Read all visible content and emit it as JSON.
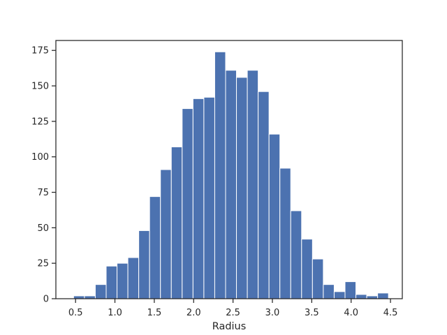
{
  "chart_data": {
    "type": "bar",
    "histogram": true,
    "bin_start": 0.475,
    "bin_width": 0.1379,
    "values": [
      2,
      2,
      10,
      23,
      25,
      29,
      48,
      72,
      91,
      107,
      134,
      141,
      142,
      174,
      161,
      156,
      161,
      146,
      116,
      92,
      62,
      42,
      28,
      10,
      5,
      12,
      3,
      2,
      4
    ],
    "xlabel": "Radius",
    "ylabel": "",
    "title": "",
    "xlim": [
      0.25,
      4.65
    ],
    "ylim": [
      0,
      182
    ],
    "xticks": [
      0.5,
      1.0,
      1.5,
      2.0,
      2.5,
      3.0,
      3.5,
      4.0,
      4.5
    ],
    "xtick_labels": [
      "0.5",
      "1.0",
      "1.5",
      "2.0",
      "2.5",
      "3.0",
      "3.5",
      "4.0",
      "4.5"
    ],
    "yticks": [
      0,
      25,
      50,
      75,
      100,
      125,
      150,
      175
    ],
    "ytick_labels": [
      "0",
      "25",
      "50",
      "75",
      "100",
      "125",
      "150",
      "175"
    ],
    "grid": false,
    "bar_color": "#4c72b0"
  }
}
